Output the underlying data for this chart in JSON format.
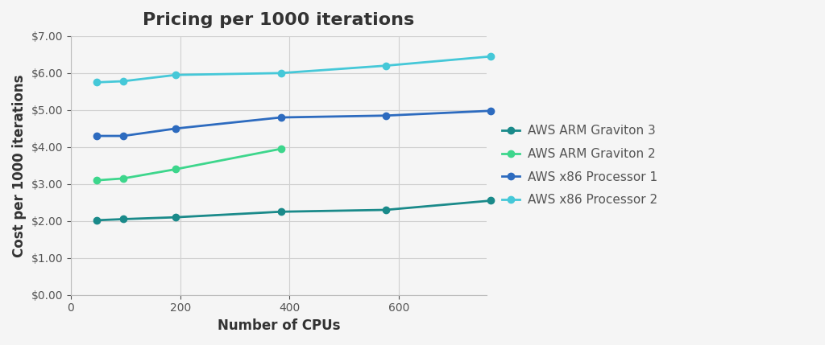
{
  "title": "Pricing per 1000 iterations",
  "xlabel": "Number of CPUs",
  "ylabel": "Cost per 1000 iterations",
  "series": [
    {
      "label": "AWS ARM Graviton 3",
      "color": "#1a8a8a",
      "x": [
        48,
        96,
        192,
        384,
        576,
        768
      ],
      "y": [
        2.02,
        2.05,
        2.1,
        2.25,
        2.3,
        2.55
      ]
    },
    {
      "label": "AWS ARM Graviton 2",
      "color": "#3dd68c",
      "x": [
        48,
        96,
        192,
        384
      ],
      "y": [
        3.1,
        3.15,
        3.4,
        3.95
      ]
    },
    {
      "label": "AWS x86 Processor 1",
      "color": "#2d6bbf",
      "x": [
        48,
        96,
        192,
        384,
        576,
        768
      ],
      "y": [
        4.3,
        4.3,
        4.5,
        4.8,
        4.85,
        4.98
      ]
    },
    {
      "label": "AWS x86 Processor 2",
      "color": "#45c8d8",
      "x": [
        48,
        96,
        192,
        384,
        576,
        768
      ],
      "y": [
        5.75,
        5.78,
        5.95,
        6.0,
        6.2,
        6.45
      ]
    }
  ],
  "ylim": [
    0.0,
    7.0
  ],
  "yticks": [
    0.0,
    1.0,
    2.0,
    3.0,
    4.0,
    5.0,
    6.0,
    7.0
  ],
  "xlim": [
    0,
    760
  ],
  "xticks": [
    0,
    200,
    400,
    600
  ],
  "background_color": "#f5f5f5",
  "plot_bg_color": "#f5f5f5",
  "grid_color": "#d0d0d0",
  "title_fontsize": 16,
  "label_fontsize": 12,
  "tick_fontsize": 10,
  "legend_fontsize": 11,
  "marker": "o",
  "markersize": 6,
  "linewidth": 2.0
}
